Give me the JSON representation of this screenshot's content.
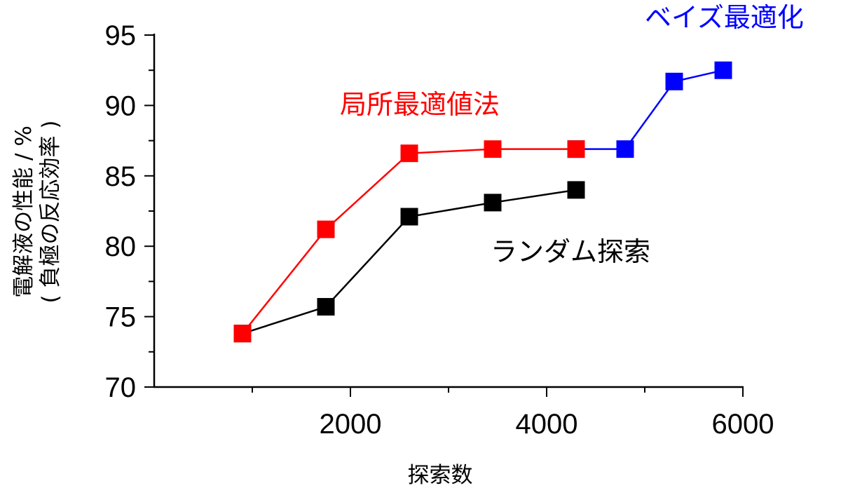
{
  "chart_data": {
    "type": "line",
    "xlabel": "探索数",
    "ylabel": [
      "電解液の性能 / %",
      "( 負極の反応効率 )"
    ],
    "xlim": [
      0,
      6000
    ],
    "ylim": [
      70,
      95
    ],
    "xticks": [
      2000,
      4000,
      6000
    ],
    "xtick_labels": [
      "2000",
      "4000",
      "6000"
    ],
    "yticks": [
      70,
      75,
      80,
      85,
      90,
      95
    ],
    "ytick_labels": [
      "70",
      "75",
      "80",
      "85",
      "90",
      "95"
    ],
    "grid": false,
    "legend": "none",
    "series": [
      {
        "name": "局所最適値法",
        "color": "#ff0000",
        "marker": "square",
        "x": [
          900,
          1750,
          2600,
          3450,
          4300
        ],
        "y": [
          73.8,
          81.2,
          86.6,
          86.9,
          86.9
        ]
      },
      {
        "name": "ランダム探索",
        "color": "#000000",
        "marker": "square",
        "x": [
          900,
          1750,
          2600,
          3450,
          4300
        ],
        "y": [
          73.8,
          75.7,
          82.1,
          83.1,
          84.0
        ]
      },
      {
        "name": "ベイズ最適化",
        "color": "#0000ff",
        "marker": "square",
        "x": [
          4300,
          4800,
          5300,
          5800
        ],
        "y": [
          86.9,
          86.9,
          91.7,
          92.5
        ]
      }
    ]
  }
}
